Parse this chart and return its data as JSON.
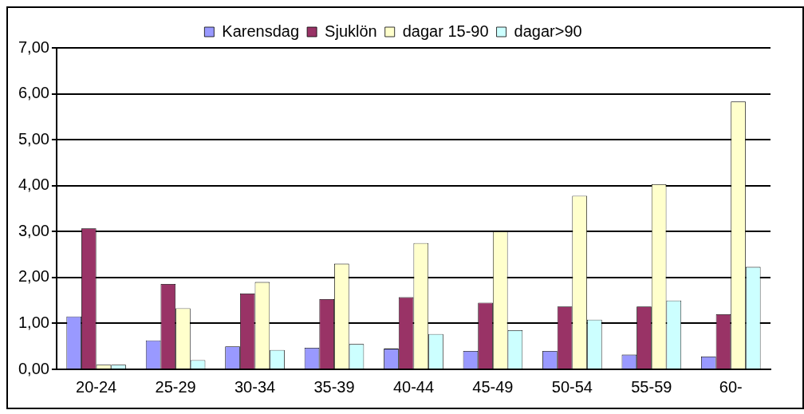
{
  "chart_data": {
    "type": "bar",
    "categories": [
      "20-24",
      "25-29",
      "30-34",
      "35-39",
      "40-44",
      "45-49",
      "50-54",
      "55-59",
      "60-"
    ],
    "series": [
      {
        "name": "Karensdag",
        "color": "#9999ff",
        "values": [
          1.15,
          0.63,
          0.5,
          0.47,
          0.45,
          0.4,
          0.4,
          0.32,
          0.28
        ]
      },
      {
        "name": "Sjuklön",
        "color": "#993366",
        "values": [
          3.07,
          1.86,
          1.65,
          1.53,
          1.57,
          1.45,
          1.37,
          1.37,
          1.2
        ]
      },
      {
        "name": "dagar 15-90",
        "color": "#ffffcc",
        "values": [
          0.1,
          1.33,
          1.9,
          2.3,
          2.75,
          3.0,
          3.78,
          4.03,
          5.83
        ]
      },
      {
        "name": "dagar>90",
        "color": "#ccffff",
        "values": [
          0.1,
          0.2,
          0.42,
          0.55,
          0.77,
          0.85,
          1.08,
          1.5,
          2.23
        ]
      }
    ],
    "ylim": [
      0,
      7
    ],
    "yticks": [
      {
        "value": 0,
        "label": "0,00"
      },
      {
        "value": 1,
        "label": "1,00"
      },
      {
        "value": 2,
        "label": "2,00"
      },
      {
        "value": 3,
        "label": "3,00"
      },
      {
        "value": 4,
        "label": "4,00"
      },
      {
        "value": 5,
        "label": "5,00"
      },
      {
        "value": 6,
        "label": "6,00"
      },
      {
        "value": 7,
        "label": "7,00"
      }
    ],
    "grid": "y",
    "legend": "top"
  }
}
